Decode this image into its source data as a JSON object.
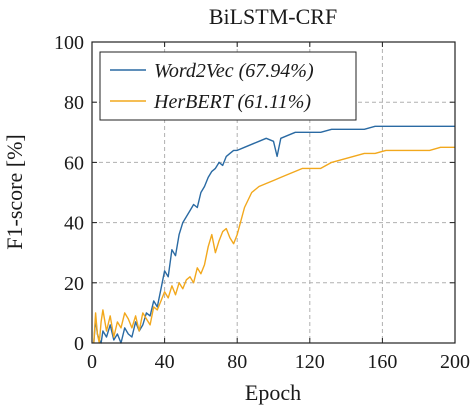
{
  "chart_data": {
    "type": "line",
    "title": "BiLSTM-CRF",
    "xlabel": "Epoch",
    "ylabel": "F1-score [%]",
    "xlim": [
      0,
      200
    ],
    "ylim": [
      0,
      100
    ],
    "xticks": [
      0,
      40,
      80,
      120,
      160,
      200
    ],
    "yticks": [
      0,
      20,
      40,
      60,
      80,
      100
    ],
    "grid": true,
    "legend_position": "top-left",
    "series": [
      {
        "name": "Word2Vec (67.94%)",
        "color": "#2a6aa3",
        "x": [
          1,
          2,
          3,
          4,
          5,
          6,
          8,
          10,
          12,
          14,
          16,
          18,
          20,
          22,
          24,
          26,
          28,
          30,
          32,
          34,
          36,
          38,
          40,
          42,
          44,
          46,
          48,
          50,
          52,
          54,
          56,
          58,
          60,
          62,
          64,
          66,
          68,
          70,
          72,
          74,
          76,
          78,
          80,
          84,
          88,
          92,
          96,
          100,
          102,
          104,
          108,
          112,
          116,
          120,
          126,
          132,
          138,
          144,
          150,
          156,
          162,
          168,
          174,
          180,
          186,
          192,
          198,
          200
        ],
        "y": [
          0,
          8,
          3,
          1,
          0,
          4,
          2,
          6,
          1,
          3,
          0,
          5,
          3,
          2,
          7,
          4,
          6,
          10,
          9,
          14,
          12,
          18,
          24,
          22,
          31,
          29,
          36,
          40,
          42,
          44,
          46,
          45,
          50,
          52,
          55,
          57,
          58,
          60,
          59,
          62,
          63,
          64,
          64,
          65,
          66,
          67,
          68,
          67,
          62,
          68,
          69,
          70,
          70,
          70,
          70,
          71,
          71,
          71,
          71,
          72,
          72,
          72,
          72,
          72,
          72,
          72,
          72,
          72
        ]
      },
      {
        "name": "HerBERT (61.11%)",
        "color": "#f2a81d",
        "x": [
          1,
          2,
          3,
          4,
          5,
          6,
          8,
          10,
          12,
          14,
          16,
          18,
          20,
          22,
          24,
          26,
          28,
          30,
          32,
          34,
          36,
          38,
          40,
          42,
          44,
          46,
          48,
          50,
          52,
          54,
          56,
          58,
          60,
          62,
          64,
          66,
          68,
          70,
          72,
          74,
          76,
          78,
          80,
          84,
          88,
          92,
          96,
          100,
          104,
          108,
          112,
          116,
          120,
          126,
          132,
          138,
          144,
          150,
          156,
          162,
          168,
          174,
          180,
          186,
          192,
          198,
          200
        ],
        "y": [
          0,
          10,
          3,
          0,
          7,
          11,
          4,
          9,
          2,
          7,
          5,
          10,
          8,
          5,
          9,
          4,
          10,
          8,
          6,
          12,
          11,
          14,
          17,
          15,
          19,
          16,
          20,
          18,
          21,
          22,
          20,
          25,
          23,
          26,
          32,
          36,
          30,
          34,
          37,
          38,
          35,
          33,
          36,
          45,
          50,
          52,
          53,
          54,
          55,
          56,
          57,
          58,
          58,
          58,
          60,
          61,
          62,
          63,
          63,
          64,
          64,
          64,
          64,
          64,
          65,
          65,
          65
        ]
      }
    ]
  }
}
